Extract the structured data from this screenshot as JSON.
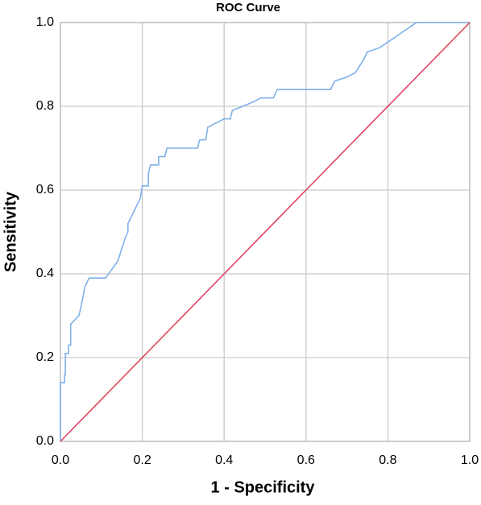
{
  "chart_data": {
    "type": "line",
    "title": "ROC Curve",
    "x_label": "1 - Specificity",
    "y_label": "Sensitivity",
    "xlim": [
      0,
      1
    ],
    "ylim": [
      0,
      1
    ],
    "xticks": [
      {
        "value": 0,
        "label": "0.0"
      },
      0.2,
      0.4,
      0.6,
      0.8,
      {
        "value": 1,
        "label": "1.0"
      }
    ],
    "yticks": [
      {
        "value": 0,
        "label": "0.0"
      },
      0.2,
      0.4,
      0.6,
      0.8,
      {
        "value": 1,
        "label": "1.0"
      }
    ],
    "grid": true,
    "series": [
      {
        "color": "#7eb0ea",
        "x": [
          0,
          0,
          0.01,
          0.01,
          0.012,
          0.012,
          0.02,
          0.02,
          0.025,
          0.025,
          0.035,
          0.045,
          0.05,
          0.06,
          0.07,
          0.11,
          0.14,
          0.15,
          0.16,
          0.165,
          0.165,
          0.18,
          0.195,
          0.2,
          0.215,
          0.215,
          0.22,
          0.24,
          0.24,
          0.255,
          0.26,
          0.335,
          0.34,
          0.355,
          0.36,
          0.38,
          0.4,
          0.415,
          0.42,
          0.47,
          0.49,
          0.52,
          0.53,
          0.66,
          0.67,
          0.7,
          0.72,
          0.74,
          0.75,
          0.78,
          0.87,
          1.0
        ],
        "values": [
          0,
          0.14,
          0.14,
          0.16,
          0.16,
          0.21,
          0.21,
          0.23,
          0.23,
          0.28,
          0.29,
          0.3,
          0.32,
          0.37,
          0.39,
          0.39,
          0.43,
          0.46,
          0.49,
          0.5,
          0.52,
          0.55,
          0.58,
          0.61,
          0.61,
          0.64,
          0.66,
          0.66,
          0.68,
          0.68,
          0.7,
          0.7,
          0.72,
          0.72,
          0.75,
          0.76,
          0.77,
          0.77,
          0.79,
          0.81,
          0.82,
          0.82,
          0.84,
          0.84,
          0.86,
          0.87,
          0.88,
          0.91,
          0.93,
          0.94,
          1.0,
          1.0
        ]
      },
      {
        "color": "#e2435e",
        "x": [
          0,
          1
        ],
        "values": [
          0,
          1
        ]
      }
    ]
  }
}
